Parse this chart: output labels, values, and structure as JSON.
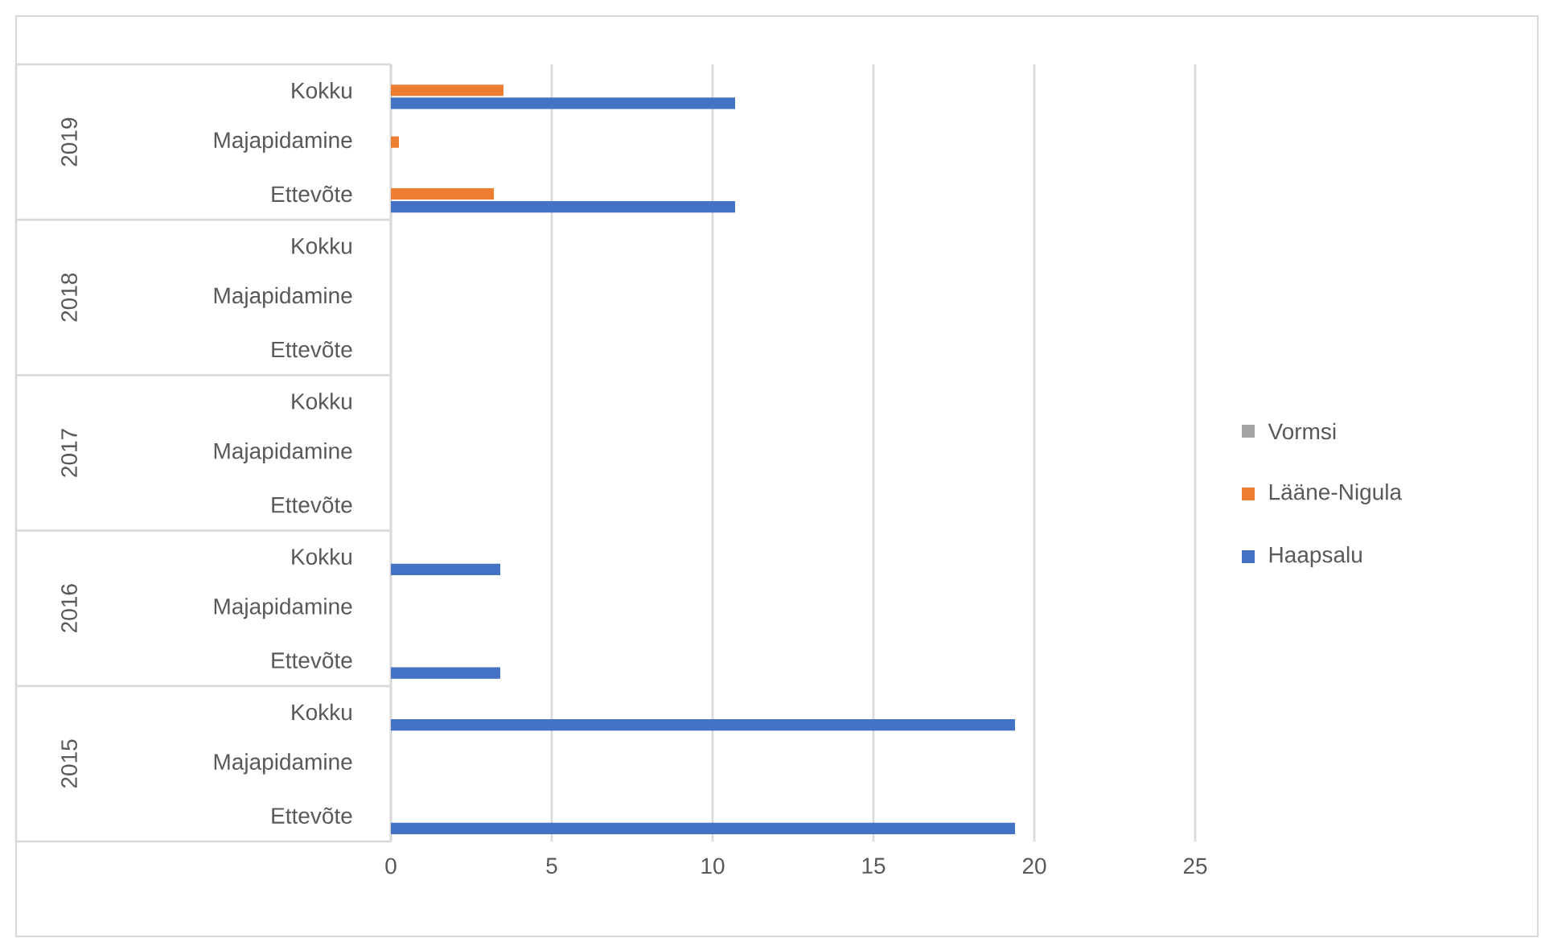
{
  "chart_data": {
    "type": "bar",
    "orientation": "horizontal",
    "categories": [
      "Kokku",
      "Majapidamine",
      "Ettevõte",
      "Kokku",
      "Majapidamine",
      "Ettevõte",
      "Kokku",
      "Majapidamine",
      "Ettevõte",
      "Kokku",
      "Majapidamine",
      "Ettevõte",
      "Kokku",
      "Majapidamine",
      "Ettevõte"
    ],
    "series": [
      {
        "name": "Haapsalu",
        "color": "#4472c4",
        "values": [
          10.7,
          null,
          10.7,
          null,
          null,
          null,
          null,
          null,
          null,
          3.4,
          null,
          3.4,
          19.4,
          null,
          19.4
        ]
      },
      {
        "name": "Lääne-Nigula",
        "color": "#ed7d31",
        "values": [
          3.5,
          0.25,
          3.2,
          null,
          null,
          null,
          null,
          null,
          null,
          null,
          null,
          null,
          null,
          null,
          null
        ]
      },
      {
        "name": "Vormsi",
        "color": "#a5a5a5",
        "values": [
          null,
          null,
          null,
          null,
          null,
          null,
          null,
          null,
          null,
          null,
          null,
          null,
          null,
          null,
          null
        ]
      }
    ],
    "xlim": [
      0,
      25
    ],
    "xticks": [
      0,
      5,
      10,
      15,
      20,
      25
    ],
    "grid": "x",
    "legend": "right",
    "annotations": [
      "2019",
      "2018",
      "2017",
      "2016",
      "2015"
    ]
  }
}
